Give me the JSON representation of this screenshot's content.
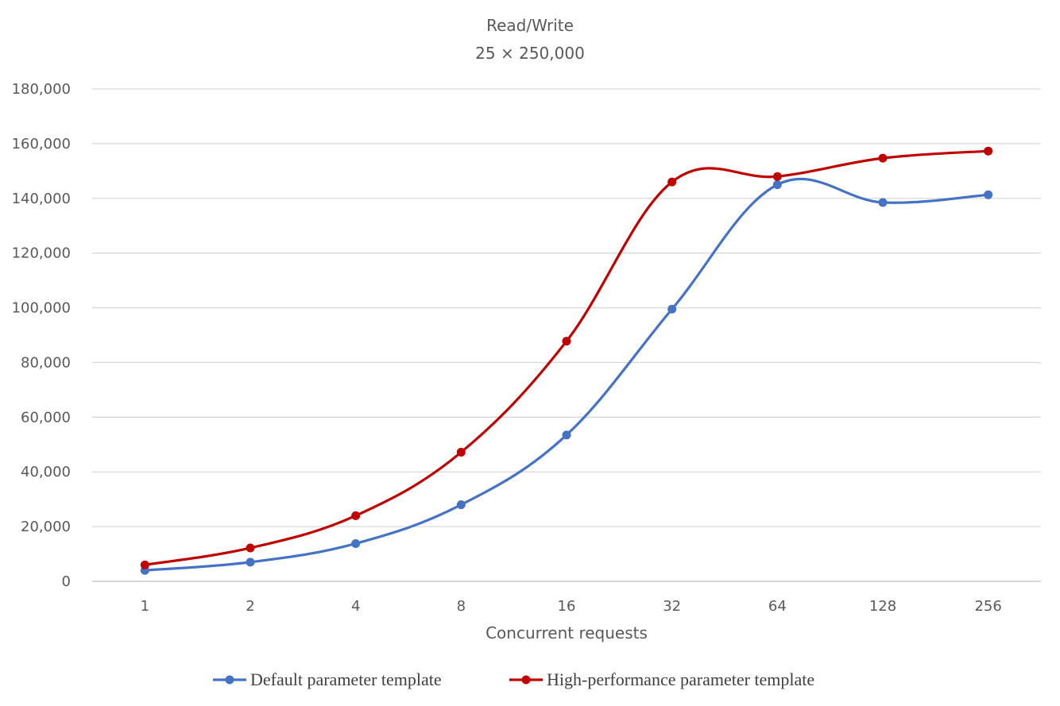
{
  "chart_data": {
    "type": "line",
    "title": "Read/Write",
    "subtitle": "25 × 250,000",
    "xlabel": "Concurrent requests",
    "ylabel": "",
    "categories": [
      "1",
      "2",
      "4",
      "8",
      "16",
      "32",
      "64",
      "128",
      "256"
    ],
    "ylim": [
      0,
      180000
    ],
    "yticks": [
      0,
      20000,
      40000,
      60000,
      80000,
      100000,
      120000,
      140000,
      160000,
      180000
    ],
    "ytick_labels": [
      "0",
      "20,000",
      "40,000",
      "60,000",
      "80,000",
      "100,000",
      "120,000",
      "140,000",
      "160,000",
      "180,000"
    ],
    "grid": true,
    "legend_position": "bottom",
    "smooth": true,
    "series": [
      {
        "name": "Default parameter template",
        "color": "#4472c4",
        "values": [
          4000,
          7000,
          13800,
          28000,
          53500,
          99500,
          145000,
          138500,
          141300
        ]
      },
      {
        "name": "High-performance parameter template",
        "color": "#c00000",
        "values": [
          6000,
          12200,
          24000,
          47200,
          87800,
          146000,
          148000,
          154700,
          157300
        ]
      }
    ]
  }
}
